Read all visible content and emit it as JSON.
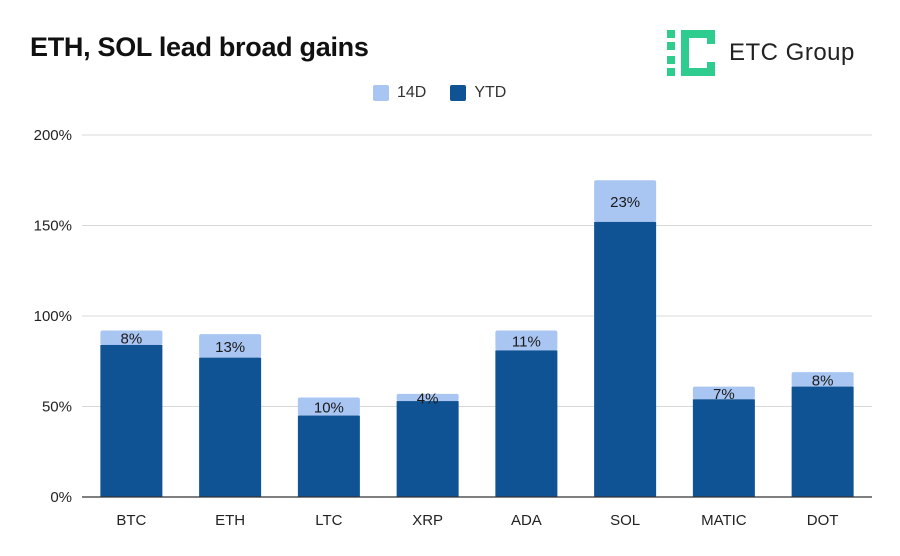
{
  "title": "ETH, SOL lead broad gains",
  "brand": {
    "name": "ETC Group",
    "icon": "etc-group-logo-icon",
    "color": "#2ecc8f"
  },
  "colors": {
    "ytd": "#0f5394",
    "d14": "#a9c6f3",
    "grid": "#d9d9d9",
    "axis": "#333333"
  },
  "chart_data": {
    "type": "bar",
    "stacked": true,
    "title": "ETH, SOL lead broad gains",
    "categories": [
      "BTC",
      "ETH",
      "LTC",
      "XRP",
      "ADA",
      "SOL",
      "MATIC",
      "DOT"
    ],
    "series": [
      {
        "name": "YTD",
        "values": [
          84,
          77,
          45,
          53,
          81,
          152,
          54,
          61
        ]
      },
      {
        "name": "14D",
        "values": [
          8,
          13,
          10,
          4,
          11,
          23,
          7,
          8
        ]
      }
    ],
    "data_labels": [
      "8%",
      "13%",
      "10%",
      "4%",
      "11%",
      "23%",
      "7%",
      "8%"
    ],
    "ylim": [
      0,
      200
    ],
    "yticks": [
      0,
      50,
      100,
      150,
      200
    ],
    "ytick_labels": [
      "0%",
      "50%",
      "100%",
      "150%",
      "200%"
    ],
    "grid": true,
    "legend": {
      "placement": "top-center",
      "entries": [
        "14D",
        "YTD"
      ]
    },
    "xlabel": "",
    "ylabel": ""
  }
}
